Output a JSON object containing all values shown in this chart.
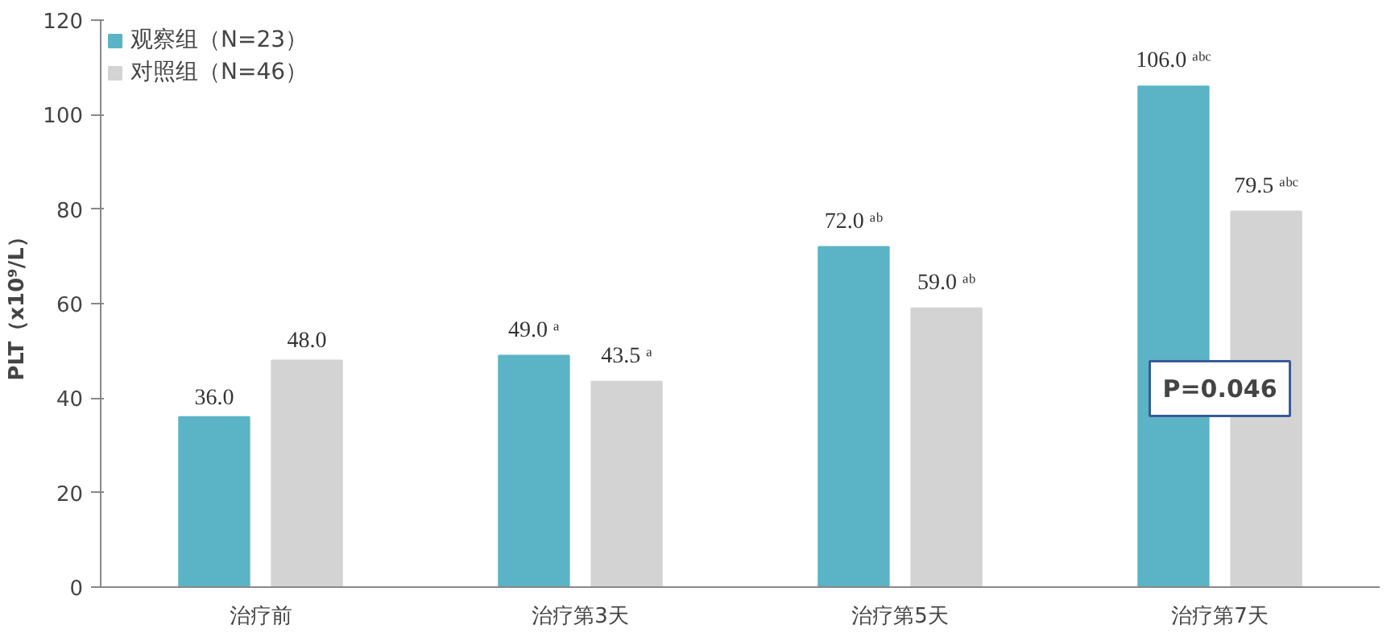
{
  "chart_data": {
    "type": "bar",
    "ylabel": "PLT（x10⁹/L）",
    "categories": [
      "治疗前",
      "治疗第3天",
      "治疗第5天",
      "治疗第7天"
    ],
    "series": [
      {
        "name": "观察组（N=23）",
        "color": "#5ab4c5",
        "values": [
          36.0,
          49.0,
          72.0,
          106.0
        ],
        "value_labels": [
          "36.0",
          "49.0 ᵃ",
          "72.0 ᵃᵇ",
          "106.0 ᵃᵇᶜ"
        ]
      },
      {
        "name": "对照组（N=46）",
        "color": "#d3d3d3",
        "values": [
          48.0,
          43.5,
          59.0,
          79.5
        ],
        "value_labels": [
          "48.0",
          "43.5 ᵃ",
          "59.0 ᵃᵇ",
          "79.5 ᵃᵇᶜ"
        ]
      }
    ],
    "ylim": [
      0,
      120
    ],
    "yticks": [
      0,
      20,
      40,
      60,
      80,
      100,
      120
    ],
    "grid": false,
    "legend": "top left",
    "annotations": [
      "P=0.046"
    ]
  }
}
